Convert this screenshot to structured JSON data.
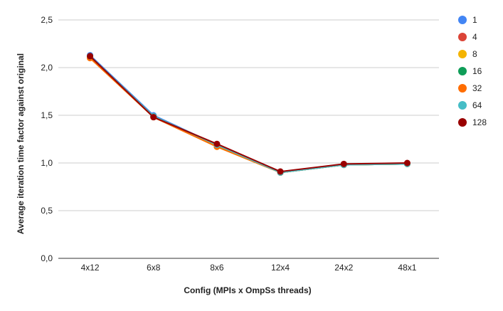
{
  "chart_data": {
    "type": "line",
    "title": "",
    "xlabel": "Config (MPIs x OmpSs threads)",
    "ylabel": "Average iteration time factor against original",
    "categories": [
      "4x12",
      "6x8",
      "8x6",
      "12x4",
      "24x2",
      "48x1"
    ],
    "ylim": [
      0,
      2.5
    ],
    "yticks": [
      "0,0",
      "0,5",
      "1,0",
      "1,5",
      "2,0",
      "2,5"
    ],
    "ytick_values": [
      0,
      0.5,
      1.0,
      1.5,
      2.0,
      2.5
    ],
    "grid": true,
    "legend_position": "right",
    "series": [
      {
        "name": "1",
        "color": "#4285F4",
        "values": [
          2.13,
          1.5,
          1.19,
          0.9,
          0.98,
          0.99
        ]
      },
      {
        "name": "4",
        "color": "#DB4437",
        "values": [
          2.12,
          1.49,
          1.19,
          0.9,
          0.98,
          0.99
        ]
      },
      {
        "name": "8",
        "color": "#F4B400",
        "values": [
          2.1,
          1.49,
          1.17,
          0.9,
          0.98,
          0.99
        ]
      },
      {
        "name": "16",
        "color": "#0F9D58",
        "values": [
          2.12,
          1.49,
          1.19,
          0.9,
          0.98,
          0.99
        ]
      },
      {
        "name": "32",
        "color": "#FF6D01",
        "values": [
          2.1,
          1.48,
          1.17,
          0.9,
          0.98,
          0.99
        ]
      },
      {
        "name": "64",
        "color": "#46BDC6",
        "values": [
          2.12,
          1.49,
          1.19,
          0.9,
          0.98,
          0.99
        ]
      },
      {
        "name": "128",
        "color": "#990000",
        "values": [
          2.12,
          1.48,
          1.2,
          0.91,
          0.99,
          1.0
        ]
      }
    ]
  }
}
